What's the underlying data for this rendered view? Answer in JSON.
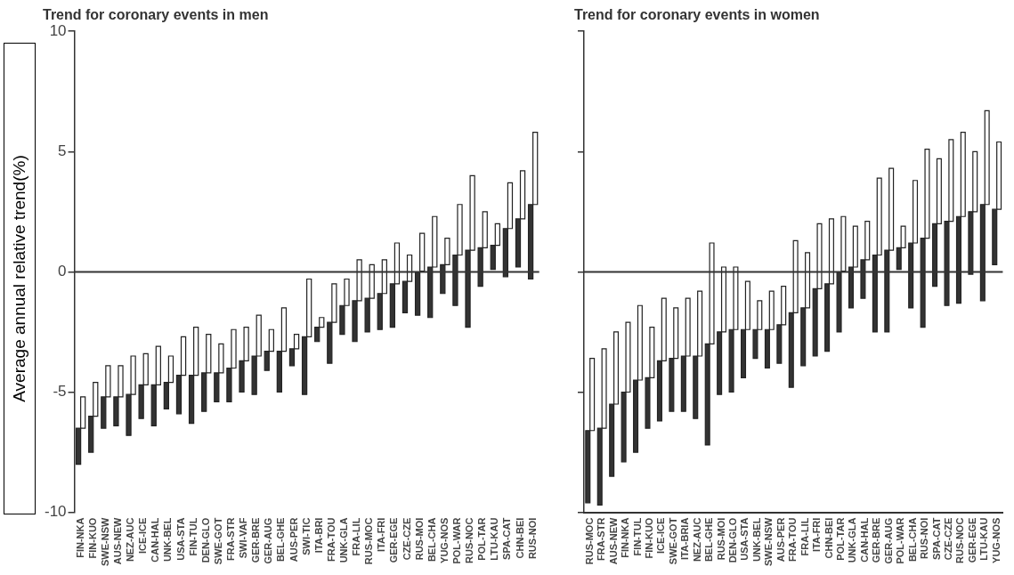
{
  "chart_data": [
    {
      "type": "bar",
      "title": "Trend for coronary events in men",
      "ylabel": "Average annual relative trend(%)",
      "grid": false,
      "legend": false,
      "categories": [
        "FIN-NKA",
        "FIN-KUO",
        "SWE-NSW",
        "AUS-NEW",
        "NEZ-AUC",
        "ICE-ICE",
        "CAN-HAL",
        "UNK-BEL",
        "USA-STA",
        "FIN-TUL",
        "DEN-GLO",
        "SWE-GOT",
        "FRA-STR",
        "SWI-VAF",
        "GER-BRE",
        "GER-AUG",
        "BEL-GHE",
        "AUS-PER",
        "SWI-TIC",
        "ITA-BRI",
        "FRA-TOU",
        "UNK-GLA",
        "FRA-LIL",
        "RUS-MOC",
        "ITA-FRI",
        "GER-EGE",
        "CZE-CZE",
        "RUS-MOI",
        "BEL-CHA",
        "YUG-NOS",
        "POL-WAR",
        "RUS-NOC",
        "POL-TAR",
        "LTU-KAU",
        "SPA-CAT",
        "CHN-BEI",
        "RUS-NOI"
      ],
      "series": [
        {
          "color": "#333333",
          "base": [
            -8.0,
            -7.5,
            -6.5,
            -6.4,
            -6.8,
            -6.1,
            -6.4,
            -5.7,
            -5.9,
            -6.3,
            -5.8,
            -5.4,
            -5.4,
            -5.0,
            -5.1,
            -4.1,
            -5.0,
            -3.9,
            -5.1,
            -2.9,
            -3.8,
            -2.6,
            -2.9,
            -2.5,
            -2.4,
            -2.3,
            -1.7,
            -1.8,
            -1.9,
            -0.9,
            -1.4,
            -2.3,
            -0.6,
            0.1,
            -0.2,
            0.2,
            -0.3
          ],
          "values": [
            1.5,
            1.5,
            1.3,
            1.2,
            1.7,
            1.4,
            1.7,
            1.1,
            1.6,
            2.0,
            1.6,
            1.2,
            1.4,
            1.3,
            1.6,
            0.8,
            1.7,
            0.7,
            2.4,
            0.6,
            1.7,
            1.2,
            1.7,
            1.4,
            1.5,
            1.8,
            1.3,
            1.8,
            2.1,
            1.2,
            2.1,
            3.2,
            1.6,
            1.0,
            2.0,
            2.0,
            3.1
          ]
        },
        {
          "color": "#ffffff",
          "base": [
            -6.5,
            -6.0,
            -5.2,
            -5.2,
            -5.1,
            -4.7,
            -4.7,
            -4.6,
            -4.3,
            -4.3,
            -4.2,
            -4.2,
            -4.0,
            -3.7,
            -3.5,
            -3.3,
            -3.3,
            -3.2,
            -2.7,
            -2.3,
            -2.1,
            -1.4,
            -1.2,
            -1.1,
            -0.9,
            -0.5,
            -0.4,
            0.0,
            0.2,
            0.3,
            0.7,
            0.9,
            1.0,
            1.1,
            1.8,
            2.2,
            2.8
          ],
          "values": [
            1.3,
            1.4,
            1.3,
            1.3,
            1.6,
            1.3,
            1.6,
            1.1,
            1.6,
            2.0,
            1.6,
            1.2,
            1.6,
            1.4,
            1.7,
            0.9,
            1.8,
            0.6,
            2.4,
            0.4,
            1.6,
            1.1,
            1.7,
            1.4,
            1.4,
            1.7,
            1.1,
            1.6,
            2.1,
            1.1,
            2.1,
            3.1,
            1.5,
            0.9,
            1.9,
            2.0,
            3.0
          ]
        }
      ],
      "ylim": [
        -10,
        10
      ],
      "yticks": [
        10,
        5,
        0,
        -5,
        -10
      ],
      "ref_lines": [
        {
          "axis": "y",
          "value": 0
        }
      ]
    },
    {
      "type": "bar",
      "title": "Trend for coronary events in women",
      "grid": false,
      "legend": false,
      "tick_labels": "x",
      "categories": [
        "RUS-MOC",
        "FRA-STR",
        "AUS-NEW",
        "FIN-NKA",
        "FIN-TUL",
        "FIN-KUO",
        "ICE-ICE",
        "SWE-GOT",
        "ITA-BRIA",
        "NEZ-AUC",
        "BEL-GHE",
        "RUS-MOI",
        "DEN-GLO",
        "USA-STA",
        "UNK-BEL",
        "SWE-NSW",
        "AUS-PER",
        "FRA-TOU",
        "FRA-LIL",
        "ITA-FRI",
        "CHN-BEI",
        "POL-TAR",
        "UNK-GLA",
        "CAN-HAL",
        "GER-BRE",
        "GER-AUG",
        "POL-WAR",
        "BEL-CHA",
        "RUS-NOI",
        "SPA-CAT",
        "CZE-CZE",
        "RUS-NOC",
        "GER-EGE",
        "LTU-KAU",
        "YUG-NOS"
      ],
      "series": [
        {
          "color": "#333333",
          "base": [
            -9.6,
            -9.7,
            -8.5,
            -7.9,
            -7.5,
            -6.5,
            -6.2,
            -5.8,
            -5.8,
            -6.1,
            -7.2,
            -5.1,
            -5.0,
            -4.4,
            -3.6,
            -4.0,
            -3.8,
            -4.8,
            -3.9,
            -3.5,
            -3.3,
            -2.5,
            -1.5,
            -1.1,
            -2.5,
            -2.5,
            0.1,
            -1.5,
            -2.3,
            -0.6,
            -1.4,
            -1.3,
            -0.1,
            -1.2,
            0.3
          ],
          "values": [
            3.0,
            3.2,
            3.0,
            2.9,
            3.0,
            2.1,
            2.5,
            2.2,
            2.3,
            2.6,
            4.2,
            2.6,
            2.6,
            2.0,
            1.2,
            1.6,
            1.6,
            3.1,
            2.4,
            2.8,
            2.8,
            2.5,
            1.7,
            1.6,
            3.2,
            3.4,
            0.9,
            2.7,
            3.7,
            2.6,
            3.5,
            3.6,
            2.6,
            4.0,
            2.3
          ]
        },
        {
          "color": "#ffffff",
          "base": [
            -6.6,
            -6.5,
            -5.5,
            -5.0,
            -4.5,
            -4.4,
            -3.7,
            -3.6,
            -3.5,
            -3.5,
            -3.0,
            -2.5,
            -2.4,
            -2.4,
            -2.4,
            -2.4,
            -2.2,
            -1.7,
            -1.5,
            -0.7,
            -0.5,
            0.0,
            0.2,
            0.5,
            0.7,
            0.9,
            1.0,
            1.2,
            1.4,
            2.0,
            2.1,
            2.3,
            2.5,
            2.8,
            2.6
          ],
          "values": [
            3.0,
            3.3,
            3.0,
            2.9,
            3.1,
            2.1,
            2.6,
            2.1,
            2.4,
            2.7,
            4.2,
            2.7,
            2.6,
            2.0,
            1.2,
            1.6,
            1.6,
            3.0,
            2.3,
            2.7,
            2.7,
            2.3,
            1.7,
            1.6,
            3.2,
            3.4,
            0.9,
            2.6,
            3.7,
            2.7,
            3.4,
            3.5,
            2.5,
            3.9,
            2.8
          ]
        }
      ],
      "ylim": [
        -10,
        10
      ],
      "yticks": [
        {
          "value": 10,
          "label": null
        },
        {
          "value": 5,
          "label": null
        },
        {
          "value": 0,
          "label": null
        },
        {
          "value": -5,
          "label": null
        },
        {
          "value": -10,
          "label": null
        }
      ],
      "ref_lines": [
        {
          "axis": "y",
          "value": 0
        }
      ]
    }
  ]
}
